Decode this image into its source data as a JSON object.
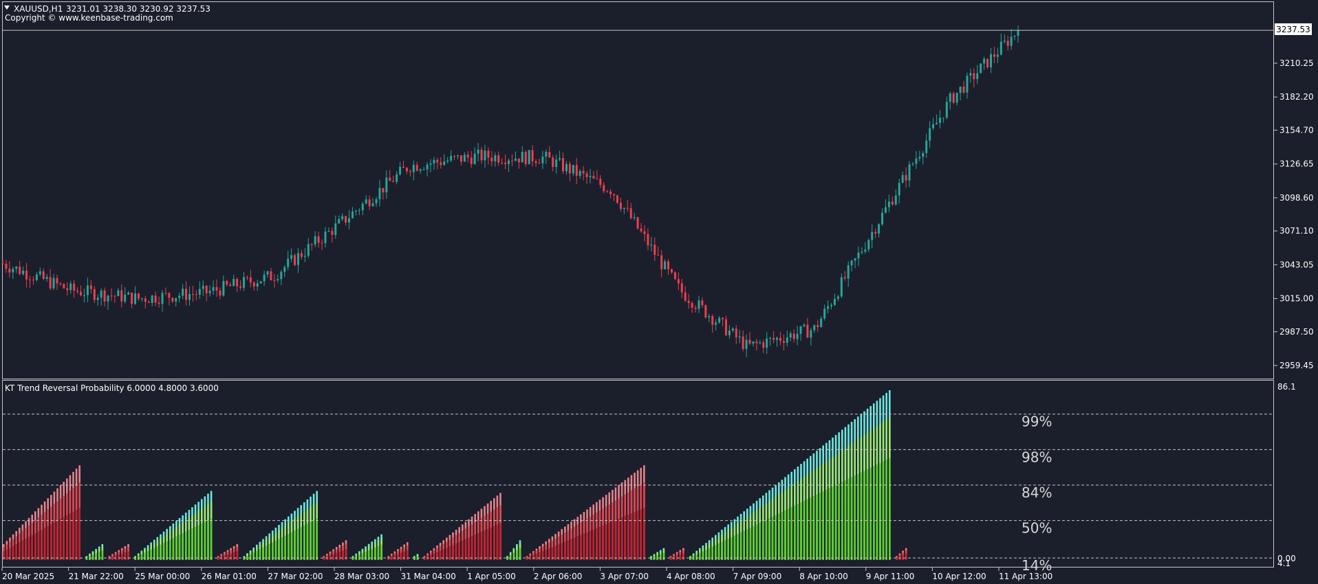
{
  "main_chart": {
    "symbol_label": "XAUUSD,H1",
    "ohlc_text": "3231.01 3238.30 3230.92 3237.53",
    "copyright": "Copyright © www.keenbase-trading.com",
    "current_price_label": "3237.53",
    "current_price": 3237.53,
    "price_ticks": [
      "3210.25",
      "3182.20",
      "3154.70",
      "3126.65",
      "3098.60",
      "3071.10",
      "3043.05",
      "3015.00",
      "2987.50",
      "2959.45"
    ],
    "price_tick_values": [
      3210.25,
      3182.2,
      3154.7,
      3126.65,
      3098.6,
      3071.1,
      3043.05,
      3015.0,
      2987.5,
      2959.45
    ],
    "colors": {
      "up": "#26a69a",
      "down": "#ef3e4f",
      "background": "#1b1f2b",
      "axis": "#ffffff"
    }
  },
  "indicator": {
    "title": "KT Trend Reversal Probability 6.0000 4.8000 3.6000",
    "max_label": "86.1",
    "zero_label": "0.00",
    "bottom_label": "4.1",
    "levels": [
      {
        "label": "99%",
        "value": 74
      },
      {
        "label": "98%",
        "value": 56
      },
      {
        "label": "84%",
        "value": 38
      },
      {
        "label": "50%",
        "value": 20
      },
      {
        "label": "14%",
        "value": 1
      }
    ]
  },
  "time_axis": {
    "labels": [
      "20 Mar 2025",
      "21 Mar 22:00",
      "25 Mar 00:00",
      "26 Mar 01:00",
      "27 Mar 02:00",
      "28 Mar 03:00",
      "31 Mar 04:00",
      "1 Apr 05:00",
      "2 Apr 06:00",
      "3 Apr 07:00",
      "4 Apr 08:00",
      "7 Apr 09:00",
      "8 Apr 10:00",
      "9 Apr 11:00",
      "10 Apr 12:00",
      "11 Apr 13:00"
    ]
  },
  "chart_data": [
    {
      "type": "line",
      "title": "XAUUSD,H1",
      "ylim": [
        2945,
        3250
      ],
      "x": [
        "20 Mar 2025",
        "21 Mar 22:00",
        "25 Mar 00:00",
        "26 Mar 01:00",
        "27 Mar 02:00",
        "28 Mar 03:00",
        "31 Mar 04:00",
        "1 Apr 05:00",
        "2 Apr 06:00",
        "3 Apr 07:00",
        "4 Apr 08:00",
        "7 Apr 09:00",
        "8 Apr 10:00",
        "9 Apr 11:00",
        "10 Apr 12:00",
        "11 Apr 13:00"
      ],
      "series": [
        {
          "values": [
            3044,
            3022,
            3015,
            3020,
            3034,
            3078,
            3125,
            3133,
            3132,
            3105,
            3022,
            2975,
            2990,
            3085,
            3180,
            3237.53
          ]
        }
      ]
    },
    {
      "type": "bar",
      "title": "KT Trend Reversal Probability 6.0000 4.8000 3.6000",
      "ylim": [
        0,
        86.1
      ],
      "waves": [
        {
          "direction": "down",
          "start": 8,
          "end": 48
        },
        {
          "direction": "up",
          "start": 2,
          "end": 8
        },
        {
          "direction": "down",
          "start": 2,
          "end": 8
        },
        {
          "direction": "up",
          "start": 2,
          "end": 35
        },
        {
          "direction": "down",
          "start": 2,
          "end": 8
        },
        {
          "direction": "up",
          "start": 2,
          "end": 35
        },
        {
          "direction": "down",
          "start": 2,
          "end": 10
        },
        {
          "direction": "up",
          "start": 2,
          "end": 13
        },
        {
          "direction": "down",
          "start": 2,
          "end": 9
        },
        {
          "direction": "up",
          "start": 2,
          "end": 3
        },
        {
          "direction": "down",
          "start": 2,
          "end": 34
        },
        {
          "direction": "up",
          "start": 2,
          "end": 10
        },
        {
          "direction": "down",
          "start": 2,
          "end": 48
        },
        {
          "direction": "up",
          "start": 2,
          "end": 6
        },
        {
          "direction": "down",
          "start": 2,
          "end": 6
        },
        {
          "direction": "up",
          "start": 2,
          "end": 86.1
        },
        {
          "direction": "down",
          "start": 2,
          "end": 6
        }
      ]
    }
  ]
}
